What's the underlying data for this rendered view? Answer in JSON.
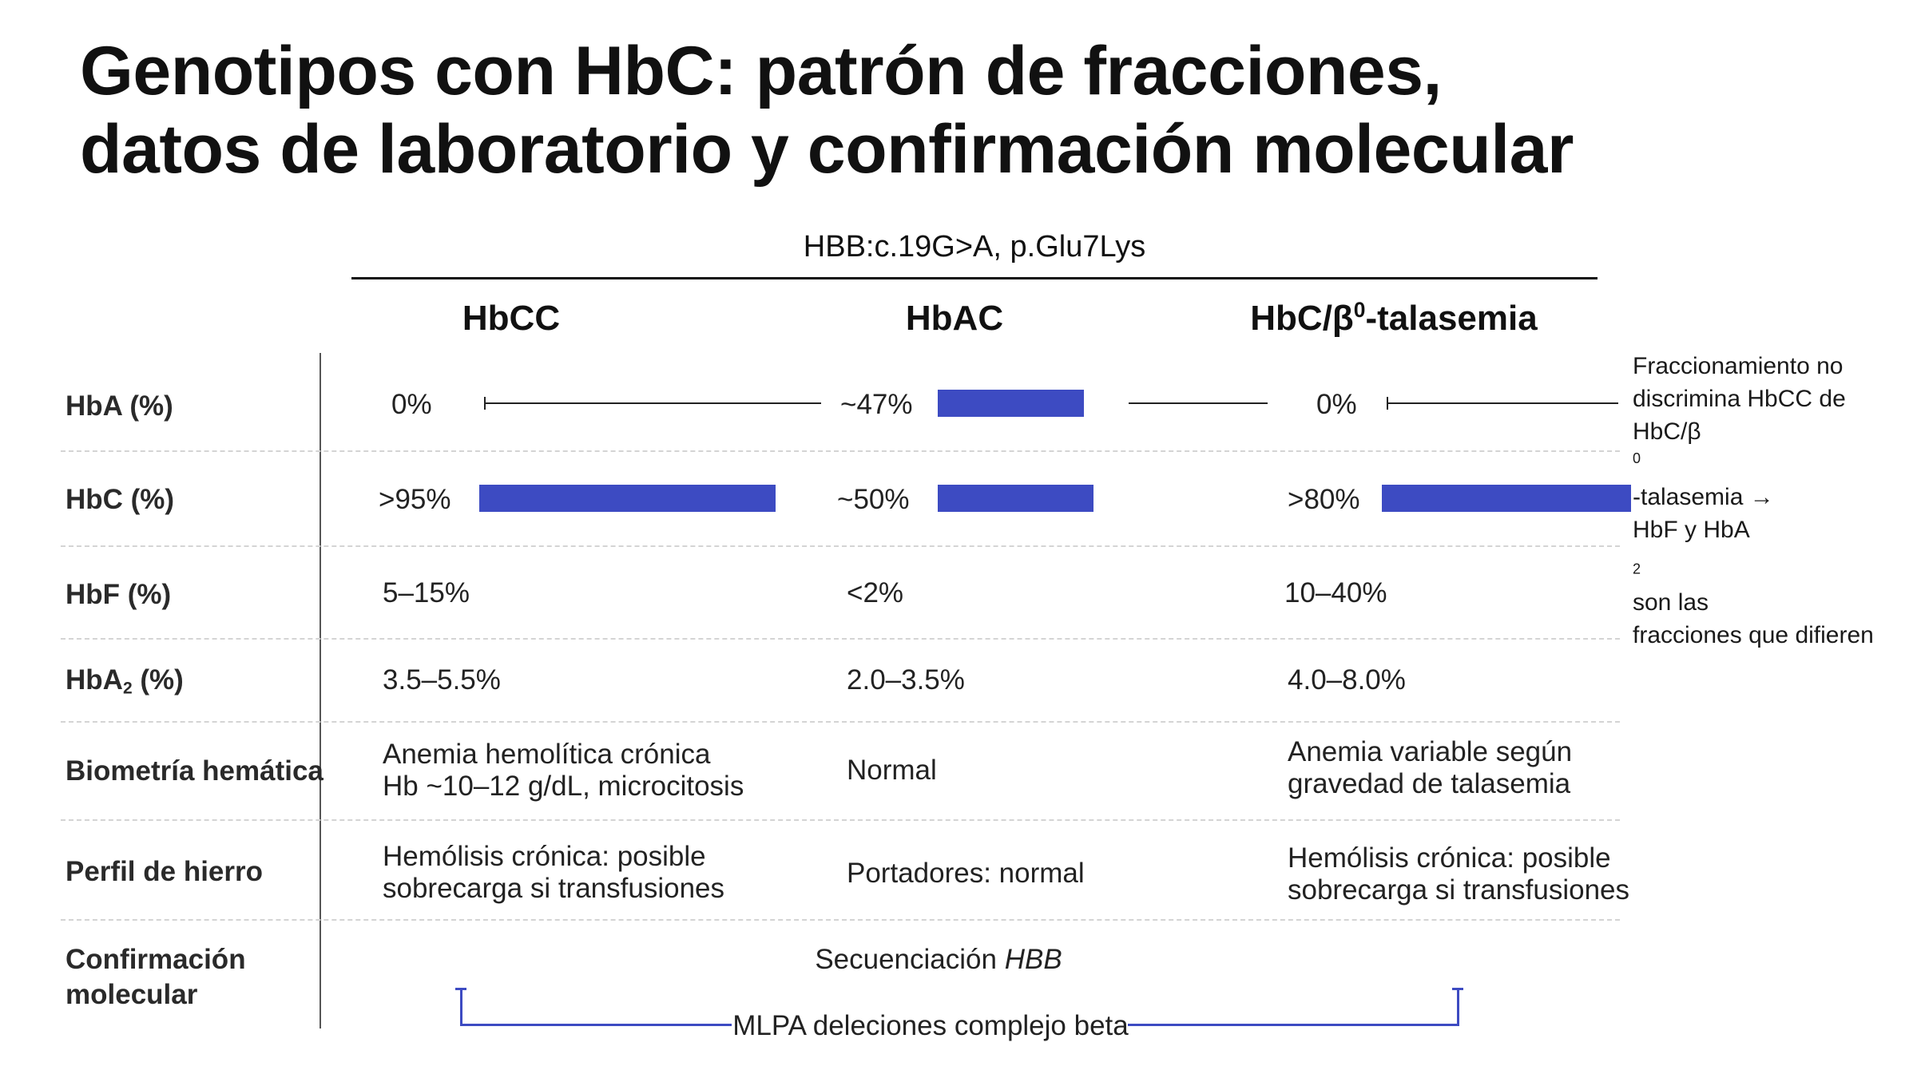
{
  "title": {
    "line1": "Genotipos con HbC: patrón de fracciones,",
    "line2": "datos de laboratorio y confirmación molecular"
  },
  "gene_label": "HBB:c.19G>A, p.Glu7Lys",
  "columns": {
    "hbcc": "HbCC",
    "hbac": "HbAC",
    "hbc_beta_pre": "HbC/β",
    "hbc_beta_sup": "0",
    "hbc_beta_post": "-talasemia"
  },
  "rows": {
    "hba": {
      "label": "HbA (%)",
      "hbcc": "0%",
      "hbac": "~47%",
      "hbc_beta": "0%",
      "fractions": {
        "hbcc": 0.0,
        "hbac": 0.47,
        "hbc_beta": 0.0
      }
    },
    "hbc": {
      "label": "HbC (%)",
      "hbcc": ">95%",
      "hbac": "~50%",
      "hbc_beta": ">80%",
      "fractions": {
        "hbcc": 0.95,
        "hbac": 0.5,
        "hbc_beta": 0.8
      }
    },
    "hbf": {
      "label": "HbF (%)",
      "hbcc": "5–15%",
      "hbac": "<2%",
      "hbc_beta": "10–40%"
    },
    "hba2": {
      "label_pre": "HbA",
      "label_sub": "2",
      "label_post": " (%)",
      "hbcc": "3.5–5.5%",
      "hbac": "2.0–3.5%",
      "hbc_beta": "4.0–8.0%"
    },
    "biometria": {
      "label": "Biometría hemática",
      "hbcc_l1": "Anemia hemolítica crónica",
      "hbcc_l2": "Hb ~10–12 g/dL, microcitosis",
      "hbac": "Normal",
      "hbc_beta_l1": "Anemia variable según",
      "hbc_beta_l2": "gravedad de talasemia"
    },
    "hierro": {
      "label": "Perfil de hierro",
      "hbcc_l1": "Hemólisis crónica: posible",
      "hbcc_l2": "sobrecarga si transfusiones",
      "hbac": "Portadores: normal",
      "hbc_beta_l1": "Hemólisis crónica: posible",
      "hbc_beta_l2": "sobrecarga si transfusiones"
    },
    "molecular": {
      "label_l1": "Confirmación",
      "label_l2": "molecular",
      "sequencing_pre": "Secuenciación ",
      "sequencing_gene": "HBB",
      "mlpa": "MLPA deleciones complejo beta"
    }
  },
  "note": {
    "l1": "Fraccionamiento no",
    "l2": "discrimina HbCC de",
    "l3_pre": "HbC/β",
    "l3_sup": "0",
    "l3_post": "-talasemia →",
    "l4_pre": "HbF y HbA",
    "l4_sub": "2",
    "l4_post": " son las",
    "l5": "fracciones que difieren"
  },
  "colors": {
    "bar": "#3d4bc2",
    "text": "#1a1a1a",
    "divider": "#d4d4d4"
  }
}
